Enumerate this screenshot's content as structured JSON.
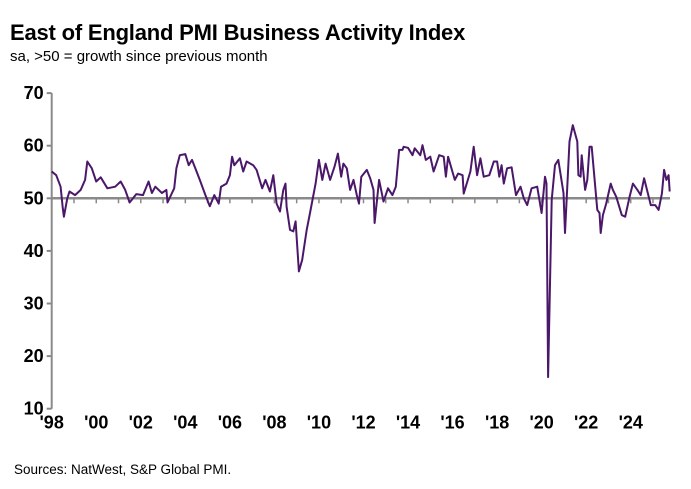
{
  "chart_data": {
    "type": "line",
    "title": "East of England PMI Business Activity Index",
    "subtitle": "sa, >50 = growth since previous month",
    "source": "Sources: NatWest, S&P Global PMI.",
    "xlabel": "",
    "ylabel": "",
    "ylim": [
      10,
      70
    ],
    "xlim": [
      1998,
      2026
    ],
    "y_ticks": [
      "70",
      "60",
      "50",
      "40",
      "30",
      "20",
      "10"
    ],
    "x_ticks": [
      "'98",
      "'00",
      "'02",
      "'04",
      "'06",
      "'08",
      "'10",
      "'12",
      "'14",
      "'16",
      "'18",
      "'20",
      "'22",
      "'24"
    ],
    "reference_line": 50,
    "grid": false,
    "line_color": "#4b1869",
    "series": [
      {
        "name": "East of England PMI Business Activity Index",
        "x": [
          1998.0,
          1998.2,
          1998.4,
          1998.5,
          1998.55,
          1998.7,
          1998.8,
          1999.05,
          1999.3,
          1999.5,
          1999.6,
          1999.8,
          2000.0,
          2000.2,
          2000.5,
          2000.85,
          2001.1,
          2001.3,
          2001.5,
          2001.8,
          2002.1,
          2002.35,
          2002.5,
          2002.65,
          2002.95,
          2003.15,
          2003.2,
          2003.5,
          2003.6,
          2003.75,
          2004.0,
          2004.15,
          2004.3,
          2004.45,
          2004.65,
          2004.9,
          2005.1,
          2005.3,
          2005.5,
          2005.6,
          2005.85,
          2006.0,
          2006.1,
          2006.2,
          2006.45,
          2006.6,
          2006.75,
          2007.05,
          2007.2,
          2007.45,
          2007.6,
          2007.8,
          2007.95,
          2008.1,
          2008.25,
          2008.4,
          2008.5,
          2008.55,
          2008.7,
          2008.85,
          2008.95,
          2009.1,
          2009.25,
          2009.45,
          2009.6,
          2009.85,
          2010.0,
          2010.15,
          2010.3,
          2010.5,
          2010.7,
          2010.85,
          2011.0,
          2011.1,
          2011.25,
          2011.4,
          2011.55,
          2011.7,
          2011.8,
          2011.9,
          2012.15,
          2012.3,
          2012.45,
          2012.5,
          2012.7,
          2012.9,
          2013.1,
          2013.3,
          2013.45,
          2013.6,
          2013.75,
          2013.8,
          2014.0,
          2014.2,
          2014.3,
          2014.55,
          2014.65,
          2014.8,
          2015.0,
          2015.15,
          2015.4,
          2015.6,
          2015.7,
          2015.8,
          2016.1,
          2016.25,
          2016.45,
          2016.5,
          2016.8,
          2016.95,
          2017.1,
          2017.25,
          2017.4,
          2017.65,
          2017.85,
          2018.0,
          2018.1,
          2018.2,
          2018.3,
          2018.45,
          2018.65,
          2018.85,
          2019.05,
          2019.2,
          2019.35,
          2019.55,
          2019.8,
          2020.0,
          2020.15,
          2020.22,
          2020.29,
          2020.45,
          2020.6,
          2020.75,
          2020.98,
          2021.05,
          2021.25,
          2021.4,
          2021.6,
          2021.65,
          2021.75,
          2021.8,
          2021.95,
          2022.05,
          2022.15,
          2022.25,
          2022.5,
          2022.6,
          2022.65,
          2022.75,
          2022.9,
          2023.1,
          2023.2,
          2023.35,
          2023.6,
          2023.75,
          2023.95,
          2024.1,
          2024.3,
          2024.45,
          2024.6,
          2024.75,
          2024.9,
          2025.1,
          2025.25,
          2025.4,
          2025.5,
          2025.6,
          2025.7,
          2025.75
        ],
        "y": [
          55.1,
          54.4,
          52.2,
          48.1,
          46.5,
          50.0,
          51.3,
          50.6,
          51.6,
          53.5,
          57.0,
          55.7,
          53.2,
          54.0,
          51.9,
          52.2,
          53.2,
          51.6,
          49.2,
          50.8,
          50.6,
          53.2,
          51.0,
          52.2,
          51.0,
          51.6,
          49.2,
          51.9,
          55.7,
          58.2,
          58.4,
          56.3,
          57.3,
          55.7,
          53.5,
          50.6,
          48.5,
          50.6,
          49.0,
          52.2,
          52.8,
          54.4,
          57.9,
          56.3,
          57.6,
          55.1,
          57.0,
          56.3,
          55.4,
          51.9,
          53.5,
          51.3,
          54.4,
          49.0,
          47.5,
          51.6,
          52.8,
          48.4,
          44.0,
          43.7,
          45.6,
          36.1,
          38.3,
          44.0,
          47.2,
          52.8,
          57.3,
          53.5,
          56.6,
          53.5,
          56.0,
          58.5,
          54.1,
          56.6,
          55.7,
          51.6,
          53.5,
          50.6,
          49.0,
          54.1,
          55.4,
          53.8,
          51.6,
          45.3,
          53.5,
          49.4,
          51.9,
          50.6,
          52.2,
          59.2,
          59.2,
          59.8,
          59.6,
          58.2,
          59.5,
          58.2,
          60.1,
          57.3,
          57.9,
          55.1,
          58.2,
          57.9,
          54.1,
          57.9,
          53.5,
          54.7,
          54.4,
          50.9,
          55.1,
          59.8,
          54.4,
          57.6,
          54.1,
          54.4,
          57.0,
          57.0,
          54.1,
          56.3,
          52.8,
          55.7,
          55.9,
          50.6,
          52.2,
          50.0,
          48.7,
          51.9,
          52.2,
          47.2,
          54.1,
          52.8,
          16.0,
          49.7,
          56.3,
          57.3,
          51.0,
          43.4,
          60.8,
          63.9,
          60.8,
          54.4,
          54.1,
          58.2,
          51.6,
          53.5,
          59.8,
          59.8,
          47.8,
          47.2,
          43.4,
          46.8,
          49.0,
          52.8,
          51.6,
          50.3,
          46.8,
          46.5,
          50.3,
          52.8,
          51.6,
          50.6,
          53.8,
          51.3,
          48.7,
          48.7,
          47.8,
          50.9,
          55.4,
          53.5,
          54.4,
          51.3
        ]
      }
    ]
  }
}
